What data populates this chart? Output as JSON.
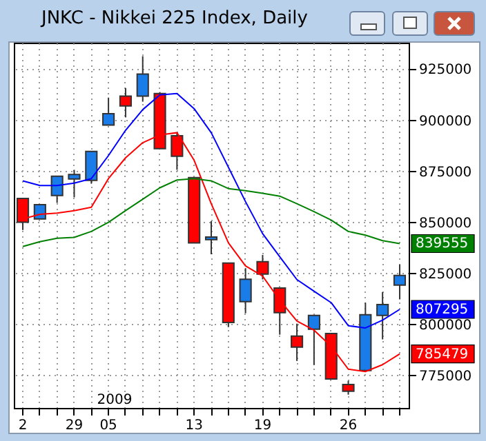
{
  "chart_data": {
    "type": "candlestick",
    "title": "JNKC - Nikkei 225 Index, Daily",
    "categories": [
      "2",
      null,
      null,
      "29",
      null,
      "05",
      null,
      null,
      null,
      null,
      "13",
      null,
      null,
      null,
      "19",
      null,
      null,
      null,
      null,
      "26",
      null,
      null,
      null
    ],
    "ohlc": [
      [
        861700,
        861700,
        846200,
        850000
      ],
      [
        851600,
        858600,
        851600,
        858600
      ],
      [
        863100,
        872600,
        859500,
        872600
      ],
      [
        871200,
        875700,
        862200,
        873400
      ],
      [
        870500,
        884700,
        868900,
        884700
      ],
      [
        897600,
        911100,
        897600,
        903200
      ],
      [
        911800,
        915800,
        901400,
        907000
      ],
      [
        911800,
        931400,
        909100,
        922600
      ],
      [
        913100,
        913800,
        886100,
        886100
      ],
      [
        892400,
        894200,
        875700,
        882400
      ],
      [
        871900,
        871900,
        839900,
        839900
      ],
      [
        841500,
        850500,
        834300,
        842800
      ],
      [
        830000,
        830000,
        798600,
        800900
      ],
      [
        811100,
        827500,
        805400,
        822100
      ],
      [
        830700,
        834000,
        822000,
        824600
      ],
      [
        817800,
        817800,
        794900,
        805700
      ],
      [
        794200,
        800300,
        782000,
        788800
      ],
      [
        797600,
        804300,
        780000,
        804300
      ],
      [
        795500,
        795500,
        773200,
        773200
      ],
      [
        770500,
        772300,
        765500,
        767200
      ],
      [
        777300,
        810600,
        777300,
        804700
      ],
      [
        804300,
        815800,
        792600,
        809700
      ],
      [
        819200,
        829300,
        812200,
        823900
      ]
    ],
    "series": [
      {
        "type": "line",
        "color": "#0000ff",
        "values": [
          870300,
          868000,
          868000,
          869200,
          871400,
          882700,
          895100,
          905200,
          912400,
          913100,
          905700,
          893900,
          877000,
          860100,
          844400,
          833100,
          821900,
          816200,
          810600,
          799300,
          798200,
          802000,
          807295
        ],
        "value_labels": [
          null,
          null,
          null,
          null,
          null,
          null,
          null,
          null,
          null,
          null,
          null,
          null,
          null,
          null,
          null,
          null,
          null,
          null,
          null,
          null,
          null,
          null,
          "807295"
        ]
      },
      {
        "type": "line",
        "color": "#ff0000",
        "values": [
          851600,
          853900,
          854500,
          855700,
          857400,
          871400,
          881600,
          889000,
          892800,
          893900,
          880400,
          859100,
          839900,
          828600,
          823600,
          811800,
          801600,
          797100,
          789200,
          778000,
          776800,
          780200,
          785479
        ],
        "value_labels": [
          null,
          null,
          null,
          null,
          null,
          null,
          null,
          null,
          null,
          null,
          null,
          null,
          null,
          null,
          null,
          null,
          null,
          null,
          null,
          null,
          null,
          null,
          "785479"
        ]
      },
      {
        "type": "line",
        "color": "#008000",
        "values": [
          838100,
          840500,
          842200,
          842600,
          845500,
          850000,
          855700,
          861300,
          866900,
          870700,
          871400,
          870300,
          866500,
          865500,
          864200,
          862800,
          859100,
          855200,
          851100,
          845500,
          843700,
          841000,
          839555
        ],
        "value_labels": [
          null,
          null,
          null,
          null,
          null,
          null,
          null,
          null,
          null,
          null,
          null,
          null,
          null,
          null,
          null,
          null,
          null,
          null,
          null,
          null,
          null,
          null,
          "839555"
        ]
      }
    ],
    "ylim": [
      759000,
      938000
    ],
    "yticks": [
      775000,
      800000,
      825000,
      850000,
      875000,
      900000,
      925000
    ],
    "grid": true,
    "annotations": [
      "2009"
    ]
  }
}
